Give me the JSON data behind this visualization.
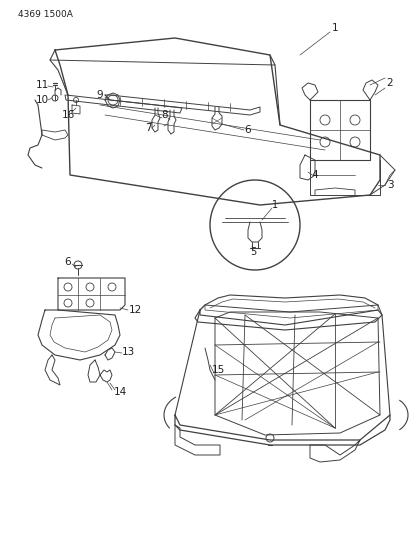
{
  "title": "4369 1500A",
  "title_fontsize": 6.5,
  "background_color": "#ffffff",
  "line_color": "#404040",
  "label_color": "#202020",
  "label_fontsize": 7.5,
  "figsize": [
    4.1,
    5.33
  ],
  "dpi": 100
}
